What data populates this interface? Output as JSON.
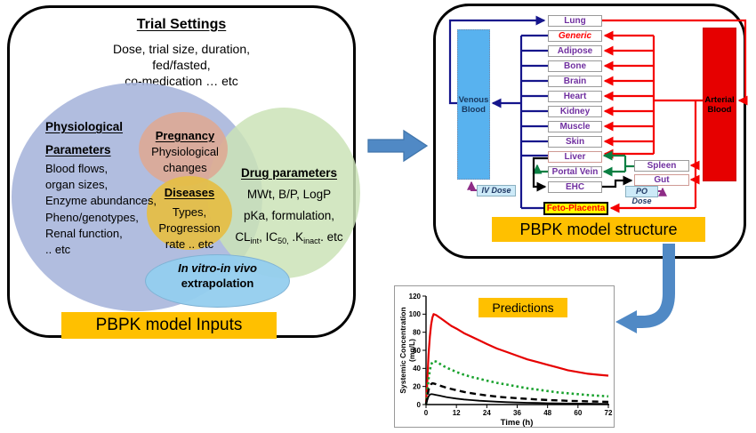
{
  "left_panel": {
    "title": "Trial Settings",
    "subtitle_lines": [
      "Dose, trial size, duration,",
      "fed/fasted,",
      "co-medication  … etc"
    ],
    "physiological": {
      "heading_line1": "Physiological",
      "heading_line2": "Parameters",
      "items": [
        "Blood flows,",
        "organ sizes,",
        "Enzyme abundances,",
        "Pheno/genotypes,",
        "Renal function,",
        ".. etc"
      ]
    },
    "pregnancy": {
      "heading": "Pregnancy",
      "lines": [
        "Physiological",
        "changes"
      ]
    },
    "diseases": {
      "heading": "Diseases",
      "lines": [
        "Types,",
        "Progression",
        "rate .. etc"
      ]
    },
    "drug": {
      "heading": "Drug parameters",
      "line1": "MWt, B/P, LogP",
      "line2": "pKa, formulation,",
      "line3_segments": [
        {
          "t": "CL"
        },
        {
          "t": "int",
          "sub": true
        },
        {
          "t": ", IC"
        },
        {
          "t": "50,",
          "sub": true
        },
        {
          "t": " .K"
        },
        {
          "t": "inact",
          "sub": true
        },
        {
          "t": ". etc"
        }
      ]
    },
    "ivive": {
      "line1": "In vitro-in vivo",
      "line2": "extrapolation"
    },
    "footer_label": "PBPK model Inputs"
  },
  "right_panel": {
    "venous_label_lines": [
      "Venous",
      "Blood"
    ],
    "arterial_label_lines": [
      "Arterial",
      "Blood"
    ],
    "organs": [
      {
        "label": "Lung"
      },
      {
        "label": "Generic",
        "style": "generic"
      },
      {
        "label": "Adipose"
      },
      {
        "label": "Bone"
      },
      {
        "label": "Brain"
      },
      {
        "label": "Heart"
      },
      {
        "label": "Kidney"
      },
      {
        "label": "Muscle"
      },
      {
        "label": "Skin"
      },
      {
        "label": "Liver",
        "pink_border": true
      },
      {
        "label": "Portal Vein"
      },
      {
        "label": "EHC"
      }
    ],
    "spleen_label": "Spleen",
    "gut_label": "Gut",
    "feto_label": "Feto-Placenta",
    "iv_dose_label": "IV Dose",
    "po_dose_label": "PO Dose",
    "footer_label": "PBPK model structure"
  },
  "chart_data": {
    "type": "line",
    "title": "Predictions",
    "xlabel": "Time (h)",
    "ylabel_lines": [
      "Systemic Concentration",
      "(mg/L)"
    ],
    "xlim": [
      0,
      72
    ],
    "ylim": [
      0,
      120
    ],
    "xticks": [
      0,
      12,
      24,
      36,
      48,
      60,
      72
    ],
    "yticks": [
      0,
      20,
      40,
      60,
      80,
      100,
      120
    ],
    "grid": false,
    "legend": "none",
    "x": [
      0,
      0.5,
      1,
      1.5,
      2,
      2.5,
      3,
      4,
      5,
      6,
      8,
      10,
      12,
      15,
      18,
      21,
      24,
      28,
      32,
      36,
      40,
      44,
      48,
      52,
      56,
      60,
      64,
      68,
      72
    ],
    "series": [
      {
        "name": "red solid (highest curve)",
        "color": "#e60000",
        "dash": "none",
        "width": 2.2,
        "values": [
          0,
          25,
          55,
          75,
          88,
          96,
          100,
          99,
          97,
          95,
          91,
          87,
          84,
          79,
          75,
          71,
          67,
          62,
          58,
          54,
          50,
          47,
          44,
          41,
          38,
          36,
          34,
          33,
          32
        ]
      },
      {
        "name": "green dotted",
        "color": "#19a22e",
        "dash": "2.5 3.2",
        "width": 2.6,
        "values": [
          0,
          12,
          28,
          38,
          44,
          47,
          48,
          47.5,
          46,
          44,
          41,
          38.5,
          36,
          33,
          30.5,
          28.5,
          26.5,
          24,
          22,
          20,
          18,
          16.5,
          15,
          13.5,
          12.5,
          11.5,
          10.5,
          9.7,
          9
        ]
      },
      {
        "name": "black dashed",
        "color": "#000000",
        "dash": "7 4.5",
        "width": 2.4,
        "values": [
          0,
          8,
          16,
          20.5,
          22.5,
          23.5,
          23.3,
          22.5,
          21.5,
          20.5,
          18.7,
          17.2,
          15.8,
          14,
          12.5,
          11.2,
          10,
          8.8,
          7.8,
          7,
          6.3,
          5.6,
          5,
          4.6,
          4.1,
          3.8,
          3.5,
          3.2,
          3
        ]
      },
      {
        "name": "black solid (lowest curve)",
        "color": "#000000",
        "dash": "none",
        "width": 1.8,
        "values": [
          0,
          5,
          9,
          11,
          11.5,
          11.4,
          11.2,
          10.6,
          10,
          9.4,
          8.3,
          7.4,
          6.6,
          5.6,
          4.9,
          4.2,
          3.7,
          3.1,
          2.7,
          2.3,
          2,
          1.75,
          1.5,
          1.35,
          1.2,
          1.05,
          0.95,
          0.88,
          0.8
        ]
      }
    ]
  },
  "colors": {
    "accent_orange": "#ffc000",
    "venous_blue": "#58b2ef",
    "arterial_red": "#e60000",
    "navy_line": "#15158c",
    "red_line": "#f50000",
    "green_line": "#0a7f42",
    "purple_line": "#8e2c86",
    "organ_text": "#7030a0",
    "connector_arrow_blue": "#5089c5"
  }
}
